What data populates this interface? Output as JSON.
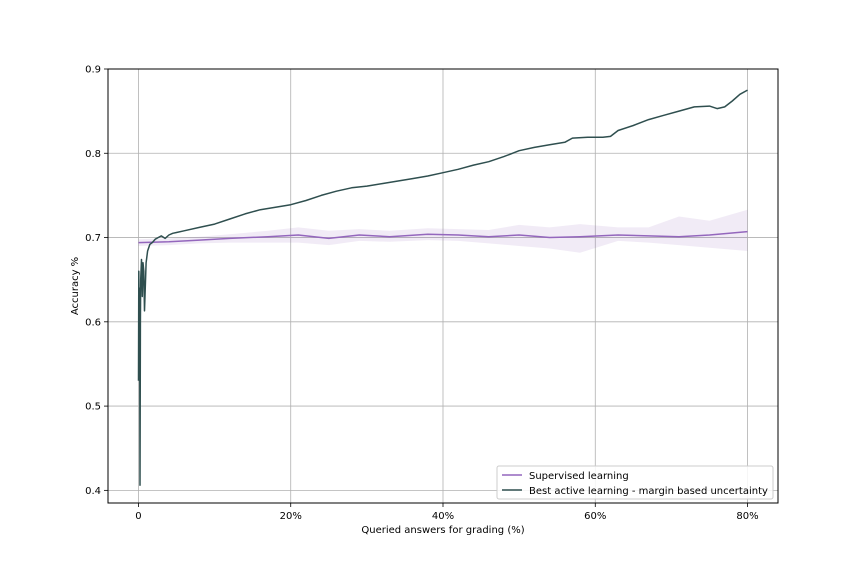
{
  "chart_data": {
    "type": "line",
    "title": "",
    "xlabel": "Queried answers for grading (%)",
    "ylabel": "Accuracy %",
    "xlim": [
      -4,
      84
    ],
    "ylim": [
      0.385,
      0.9
    ],
    "xticks": [
      {
        "value": 0,
        "label": "0"
      },
      {
        "value": 20,
        "label": "20%"
      },
      {
        "value": 40,
        "label": "40%"
      },
      {
        "value": 60,
        "label": "60%"
      },
      {
        "value": 80,
        "label": "80%"
      }
    ],
    "yticks": [
      {
        "value": 0.4,
        "label": "0.4"
      },
      {
        "value": 0.5,
        "label": "0.5"
      },
      {
        "value": 0.6,
        "label": "0.6"
      },
      {
        "value": 0.7,
        "label": "0.7"
      },
      {
        "value": 0.8,
        "label": "0.8"
      },
      {
        "value": 0.9,
        "label": "0.9"
      }
    ],
    "grid": true,
    "legend_position": "lower-right",
    "series": [
      {
        "name": "Supervised learning",
        "color": "#9467bd",
        "x": [
          0,
          4,
          8,
          12,
          17,
          21,
          25,
          29,
          33,
          38,
          42,
          46,
          50,
          54,
          58,
          63,
          67,
          71,
          75,
          80
        ],
        "y": [
          0.694,
          0.695,
          0.697,
          0.699,
          0.701,
          0.703,
          0.699,
          0.703,
          0.701,
          0.704,
          0.703,
          0.701,
          0.703,
          0.7,
          0.701,
          0.703,
          0.702,
          0.701,
          0.703,
          0.707
        ],
        "band_upper": [
          0.698,
          0.699,
          0.701,
          0.704,
          0.708,
          0.712,
          0.708,
          0.71,
          0.708,
          0.711,
          0.71,
          0.709,
          0.715,
          0.712,
          0.716,
          0.712,
          0.712,
          0.725,
          0.72,
          0.733
        ],
        "band_lower": [
          0.69,
          0.691,
          0.693,
          0.694,
          0.694,
          0.694,
          0.691,
          0.696,
          0.695,
          0.697,
          0.696,
          0.693,
          0.69,
          0.687,
          0.682,
          0.696,
          0.694,
          0.691,
          0.688,
          0.684
        ]
      },
      {
        "name": "Best active learning - margin based uncertainty",
        "color": "#2f4f4f",
        "x": [
          0,
          0.05,
          0.1,
          0.15,
          0.2,
          0.25,
          0.3,
          0.4,
          0.5,
          0.6,
          0.7,
          0.8,
          1.0,
          1.2,
          1.5,
          1.8,
          2.2,
          2.6,
          3.0,
          3.5,
          4.0,
          4.5,
          5,
          6,
          8,
          10,
          12,
          14,
          16,
          18,
          20,
          22,
          24,
          26,
          28,
          30,
          32,
          34,
          36,
          38,
          40,
          42,
          44,
          46,
          48,
          50,
          52,
          54,
          56,
          57,
          59,
          61,
          62,
          63,
          65,
          67,
          69,
          71,
          73,
          75,
          76,
          77,
          78,
          79,
          80
        ],
        "y": [
          0.53,
          0.66,
          0.58,
          0.64,
          0.406,
          0.6,
          0.65,
          0.674,
          0.63,
          0.67,
          0.66,
          0.613,
          0.67,
          0.684,
          0.692,
          0.694,
          0.698,
          0.7,
          0.702,
          0.699,
          0.703,
          0.705,
          0.706,
          0.708,
          0.712,
          0.716,
          0.722,
          0.728,
          0.733,
          0.736,
          0.739,
          0.744,
          0.75,
          0.755,
          0.759,
          0.761,
          0.764,
          0.767,
          0.77,
          0.773,
          0.777,
          0.781,
          0.786,
          0.79,
          0.796,
          0.803,
          0.807,
          0.81,
          0.813,
          0.818,
          0.819,
          0.819,
          0.82,
          0.827,
          0.833,
          0.84,
          0.845,
          0.85,
          0.855,
          0.856,
          0.853,
          0.855,
          0.862,
          0.87,
          0.875
        ]
      }
    ]
  }
}
